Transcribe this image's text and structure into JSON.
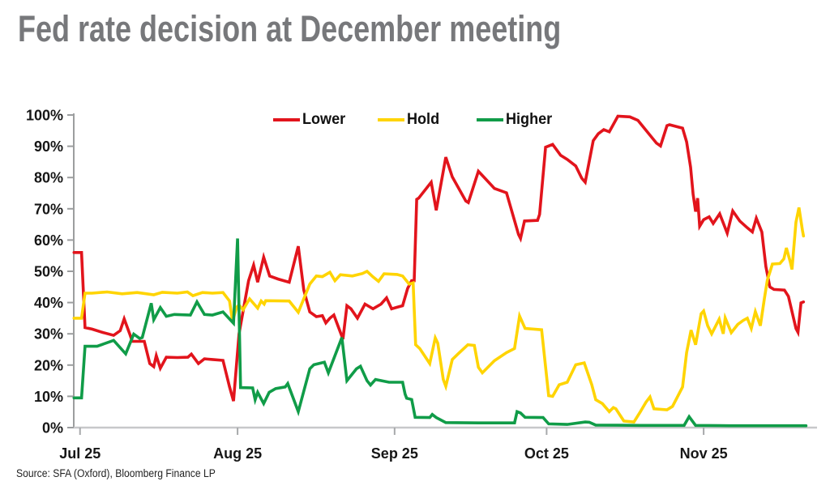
{
  "header": {
    "title": "Fed rate decision at December meeting"
  },
  "footer": {
    "source": "Source: SFA (Oxford), Bloomberg Finance LP"
  },
  "chart_data": {
    "type": "line",
    "title": "Fed rate decision at December meeting",
    "grid": false,
    "legend_position": "top-center",
    "x_axis": {
      "unit": "day index (daily implied probabilities, late Jul to mid Dec)",
      "range": [
        -0.65,
        147.5
      ],
      "ticks": [
        {
          "value": 0.6,
          "label": "Jul 25"
        },
        {
          "value": 32.0,
          "label": "Aug 25"
        },
        {
          "value": 63.3,
          "label": "Sep 25"
        },
        {
          "value": 93.6,
          "label": "Oct 25"
        },
        {
          "value": 124.9,
          "label": "Nov 25"
        }
      ]
    },
    "y_axis": {
      "unit": "probability",
      "range": [
        0,
        100
      ],
      "ticks": [
        {
          "value": 0,
          "label": "0%"
        },
        {
          "value": 10,
          "label": "10%"
        },
        {
          "value": 20,
          "label": "20%"
        },
        {
          "value": 30,
          "label": "30%"
        },
        {
          "value": 40,
          "label": "40%"
        },
        {
          "value": 50,
          "label": "50%"
        },
        {
          "value": 60,
          "label": "60%"
        },
        {
          "value": 70,
          "label": "70%"
        },
        {
          "value": 80,
          "label": "80%"
        },
        {
          "value": 90,
          "label": "90%"
        },
        {
          "value": 100,
          "label": "100%"
        }
      ]
    },
    "axis_colors": {
      "left": "#9c9e9f",
      "bottom": "#c7c8ca",
      "tick": "#a7a9ab"
    },
    "series": [
      {
        "name": "Lower",
        "color": "#e2141c",
        "points": [
          [
            -0.6,
            56
          ],
          [
            0.9,
            56
          ],
          [
            1.6,
            32
          ],
          [
            3,
            31.5
          ],
          [
            5,
            30.5
          ],
          [
            7.3,
            29.5
          ],
          [
            8.6,
            31
          ],
          [
            9.4,
            34.8
          ],
          [
            10.5,
            30
          ],
          [
            11,
            27.6
          ],
          [
            13.4,
            27.6
          ],
          [
            14.5,
            20.5
          ],
          [
            15.3,
            19.5
          ],
          [
            15.8,
            23
          ],
          [
            16.6,
            19
          ],
          [
            17.8,
            22.5
          ],
          [
            20,
            22.4
          ],
          [
            22.1,
            22.5
          ],
          [
            22.8,
            23.5
          ],
          [
            24.2,
            20.5
          ],
          [
            25.4,
            22
          ],
          [
            27,
            21.8
          ],
          [
            29.1,
            21.5
          ],
          [
            30.4,
            13
          ],
          [
            31.2,
            8.5
          ],
          [
            32.3,
            30
          ],
          [
            34.2,
            47
          ],
          [
            35.2,
            52
          ],
          [
            36,
            46.5
          ],
          [
            37.2,
            54.5
          ],
          [
            38.4,
            48.5
          ],
          [
            40.1,
            47.5
          ],
          [
            42.3,
            46.5
          ],
          [
            44.1,
            58
          ],
          [
            45.2,
            44
          ],
          [
            46.4,
            37
          ],
          [
            47.7,
            35.5
          ],
          [
            48.9,
            35.8
          ],
          [
            49.6,
            33.5
          ],
          [
            50.4,
            35
          ],
          [
            51.2,
            36
          ],
          [
            53,
            28.3
          ],
          [
            53.8,
            39
          ],
          [
            54.6,
            38
          ],
          [
            55.9,
            35
          ],
          [
            57.4,
            39.5
          ],
          [
            59,
            38
          ],
          [
            60.6,
            39.5
          ],
          [
            61.7,
            41.5
          ],
          [
            62.7,
            38
          ],
          [
            63.8,
            38.5
          ],
          [
            64.9,
            39
          ],
          [
            65.9,
            44.5
          ],
          [
            66.7,
            47
          ],
          [
            67.2,
            47
          ],
          [
            67.7,
            73
          ],
          [
            68.1,
            73.4
          ],
          [
            70.6,
            78.5
          ],
          [
            71.6,
            69.5
          ],
          [
            73.5,
            86.5
          ],
          [
            74.8,
            80.2
          ],
          [
            77.5,
            72.5
          ],
          [
            78,
            72
          ],
          [
            80,
            82
          ],
          [
            81.3,
            79.8
          ],
          [
            83.2,
            76.5
          ],
          [
            85.6,
            75.1
          ],
          [
            88,
            61.8
          ],
          [
            88.4,
            60.5
          ],
          [
            89.2,
            66.1
          ],
          [
            91.8,
            66.3
          ],
          [
            92.2,
            68.2
          ],
          [
            93.4,
            89.7
          ],
          [
            94.8,
            90.6
          ],
          [
            96.4,
            87.1
          ],
          [
            97.7,
            85.8
          ],
          [
            99.4,
            83.7
          ],
          [
            100.6,
            79.8
          ],
          [
            101.3,
            78.5
          ],
          [
            102.9,
            91.8
          ],
          [
            103.9,
            94
          ],
          [
            105,
            95.3
          ],
          [
            106.1,
            94.6
          ],
          [
            107.8,
            99.6
          ],
          [
            110.2,
            99.4
          ],
          [
            111.8,
            98.3
          ],
          [
            115.5,
            91
          ],
          [
            116.3,
            90.1
          ],
          [
            117.6,
            96.6
          ],
          [
            118.1,
            96.9
          ],
          [
            120.7,
            95.8
          ],
          [
            121.5,
            91.4
          ],
          [
            122.3,
            83.3
          ],
          [
            122.8,
            74.7
          ],
          [
            123.3,
            69.1
          ],
          [
            123.7,
            73.4
          ],
          [
            124.1,
            64.4
          ],
          [
            124.9,
            66.5
          ],
          [
            126,
            67.4
          ],
          [
            126.8,
            65.3
          ],
          [
            128.1,
            68.4
          ],
          [
            129.6,
            62.2
          ],
          [
            130.7,
            69.3
          ],
          [
            132.1,
            66.1
          ],
          [
            133.6,
            63.9
          ],
          [
            134.6,
            62.6
          ],
          [
            135.4,
            67
          ],
          [
            136.5,
            62.6
          ],
          [
            137.3,
            51.5
          ],
          [
            138.1,
            45
          ],
          [
            138.9,
            44.2
          ],
          [
            141,
            44
          ],
          [
            141.8,
            42
          ],
          [
            143.3,
            31.7
          ],
          [
            143.7,
            30.5
          ],
          [
            144.3,
            39.9
          ],
          [
            144.8,
            40.2
          ]
        ]
      },
      {
        "name": "Hold",
        "color": "#ffd400",
        "points": [
          [
            -0.6,
            35
          ],
          [
            0.9,
            35
          ],
          [
            1.6,
            43
          ],
          [
            3,
            43
          ],
          [
            6,
            43.4
          ],
          [
            9,
            42.8
          ],
          [
            12,
            43.2
          ],
          [
            15.3,
            42.5
          ],
          [
            17,
            43.3
          ],
          [
            20,
            43
          ],
          [
            22,
            43.4
          ],
          [
            23.1,
            42.2
          ],
          [
            25,
            43.2
          ],
          [
            27,
            43
          ],
          [
            29.1,
            43.2
          ],
          [
            30.4,
            40.5
          ],
          [
            31,
            34
          ],
          [
            31.8,
            38.5
          ],
          [
            32.3,
            39.2
          ],
          [
            33.1,
            37.7
          ],
          [
            34.4,
            41.2
          ],
          [
            36,
            38.2
          ],
          [
            36.7,
            40.5
          ],
          [
            37.3,
            39.5
          ],
          [
            37.6,
            40.6
          ],
          [
            42.3,
            40.5
          ],
          [
            44.1,
            36.9
          ],
          [
            46.4,
            45.9
          ],
          [
            47.7,
            48.5
          ],
          [
            48.9,
            48.3
          ],
          [
            50.4,
            49.7
          ],
          [
            51.4,
            47
          ],
          [
            52.5,
            48.9
          ],
          [
            54.9,
            48.5
          ],
          [
            56.9,
            49.3
          ],
          [
            57.8,
            50
          ],
          [
            59,
            48.2
          ],
          [
            60.1,
            46.8
          ],
          [
            61.2,
            49.2
          ],
          [
            63.8,
            49
          ],
          [
            64.9,
            48.5
          ],
          [
            66.2,
            45.9
          ],
          [
            67,
            46.3
          ],
          [
            67.5,
            26.5
          ],
          [
            68.3,
            25.3
          ],
          [
            70.3,
            20.5
          ],
          [
            71.4,
            28.7
          ],
          [
            71.9,
            27
          ],
          [
            73,
            15.4
          ],
          [
            73.5,
            13.2
          ],
          [
            74.8,
            21.8
          ],
          [
            75.9,
            23.5
          ],
          [
            77.9,
            26.5
          ],
          [
            79.2,
            26.3
          ],
          [
            80,
            19.3
          ],
          [
            80.8,
            17.5
          ],
          [
            83.2,
            21.4
          ],
          [
            85.6,
            24
          ],
          [
            87.2,
            25.3
          ],
          [
            88.2,
            35.7
          ],
          [
            89.3,
            31.7
          ],
          [
            92.6,
            31.3
          ],
          [
            94,
            10.2
          ],
          [
            94.8,
            10
          ],
          [
            96.1,
            13.7
          ],
          [
            97.7,
            14.5
          ],
          [
            99.4,
            20.1
          ],
          [
            101.1,
            20.7
          ],
          [
            102.6,
            13.7
          ],
          [
            103.4,
            8.9
          ],
          [
            104.7,
            7.7
          ],
          [
            106.1,
            5.1
          ],
          [
            106.9,
            6.4
          ],
          [
            107.4,
            6
          ],
          [
            109,
            2.1
          ],
          [
            111,
            1.8
          ],
          [
            112.3,
            5.1
          ],
          [
            113.4,
            8.1
          ],
          [
            114.2,
            9.8
          ],
          [
            115,
            6
          ],
          [
            117.6,
            5.7
          ],
          [
            118.7,
            6.8
          ],
          [
            120.7,
            13
          ],
          [
            121.5,
            24
          ],
          [
            122.4,
            31.2
          ],
          [
            123.3,
            26.5
          ],
          [
            124.4,
            36.4
          ],
          [
            124.9,
            37.3
          ],
          [
            125.7,
            32.6
          ],
          [
            126.5,
            30
          ],
          [
            128,
            34.7
          ],
          [
            128.8,
            30
          ],
          [
            129.2,
            35.1
          ],
          [
            130.4,
            30.4
          ],
          [
            131.7,
            33
          ],
          [
            132.8,
            34.3
          ],
          [
            133.6,
            35
          ],
          [
            134.4,
            31.7
          ],
          [
            135.2,
            37.1
          ],
          [
            136.2,
            32.6
          ],
          [
            137,
            41.2
          ],
          [
            137.6,
            47.2
          ],
          [
            138.1,
            49.7
          ],
          [
            138.6,
            52.3
          ],
          [
            140.1,
            52.5
          ],
          [
            140.9,
            54
          ],
          [
            141.4,
            57.5
          ],
          [
            142.2,
            52.8
          ],
          [
            142.5,
            50.6
          ],
          [
            143.3,
            65.7
          ],
          [
            143.9,
            70.4
          ],
          [
            144.6,
            63.1
          ],
          [
            144.8,
            61.3
          ]
        ]
      },
      {
        "name": "Higher",
        "color": "#109c48",
        "points": [
          [
            -0.6,
            9.5
          ],
          [
            0.9,
            9.5
          ],
          [
            1.6,
            26
          ],
          [
            4,
            26
          ],
          [
            7.3,
            27.9
          ],
          [
            9.7,
            23.6
          ],
          [
            11.3,
            29.9
          ],
          [
            12.5,
            28.5
          ],
          [
            13,
            28.8
          ],
          [
            14.8,
            39.8
          ],
          [
            15.3,
            34.5
          ],
          [
            16.6,
            38.4
          ],
          [
            17.8,
            35.6
          ],
          [
            19.4,
            36.2
          ],
          [
            22.6,
            36
          ],
          [
            23.9,
            40.2
          ],
          [
            25.4,
            36.2
          ],
          [
            27,
            36
          ],
          [
            29.1,
            37
          ],
          [
            31.2,
            33.4
          ],
          [
            32,
            60.5
          ],
          [
            32.6,
            12.8
          ],
          [
            35,
            12.7
          ],
          [
            35.5,
            8.9
          ],
          [
            36,
            11.3
          ],
          [
            37.2,
            7.7
          ],
          [
            38.3,
            11.3
          ],
          [
            39.6,
            12.5
          ],
          [
            41.5,
            13
          ],
          [
            42,
            14.1
          ],
          [
            44.1,
            5.1
          ],
          [
            46.4,
            18.8
          ],
          [
            47.2,
            20.1
          ],
          [
            49.3,
            20.9
          ],
          [
            50.1,
            17.5
          ],
          [
            52.8,
            28.8
          ],
          [
            53.8,
            15
          ],
          [
            55.7,
            18.8
          ],
          [
            56.5,
            19.6
          ],
          [
            57.8,
            15
          ],
          [
            58.5,
            13.6
          ],
          [
            59.5,
            15.4
          ],
          [
            62.2,
            14.5
          ],
          [
            64.9,
            14.5
          ],
          [
            65.4,
            10.7
          ],
          [
            65.7,
            9.4
          ],
          [
            66.7,
            9
          ],
          [
            67.4,
            3.3
          ],
          [
            70.3,
            3.2
          ],
          [
            70.8,
            4.2
          ],
          [
            71.6,
            3.2
          ],
          [
            73.5,
            1.6
          ],
          [
            80,
            1.5
          ],
          [
            87.2,
            1.5
          ],
          [
            87.7,
            5.1
          ],
          [
            88.4,
            4.7
          ],
          [
            89.3,
            3.3
          ],
          [
            92.9,
            3.2
          ],
          [
            94,
            1.2
          ],
          [
            97.7,
            1
          ],
          [
            101.3,
            1.8
          ],
          [
            102.1,
            1.7
          ],
          [
            103.4,
            0.8
          ],
          [
            112.3,
            0.7
          ],
          [
            121,
            0.7
          ],
          [
            122,
            3.5
          ],
          [
            123.3,
            0.7
          ],
          [
            130,
            0.6
          ],
          [
            140,
            0.6
          ],
          [
            145.3,
            0.6
          ]
        ]
      }
    ]
  }
}
